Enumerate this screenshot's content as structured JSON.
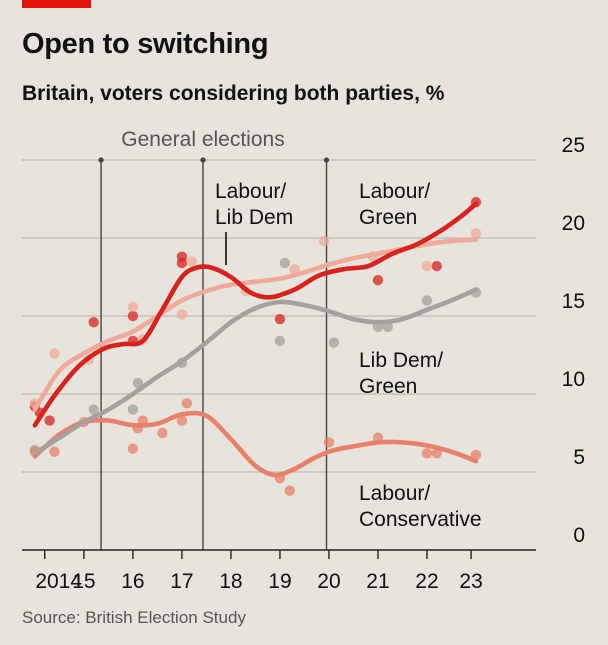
{
  "header": {
    "title": "Open to switching",
    "subtitle": "Britain, voters considering both parties, %"
  },
  "source": "Source: British Election Study",
  "colors": {
    "background": "#e6e4dc",
    "brand": "#e3120b",
    "grid": "#bdbbb3",
    "labour_lib_dem": "#d9221c",
    "labour_green": "#f0a99a",
    "lib_dem_green": "#a4a29e",
    "labour_conservative": "#e8806a"
  },
  "chart_data": {
    "type": "line",
    "title": "Open to switching",
    "subtitle": "Britain, voters considering both parties, %",
    "xlabel": "",
    "ylabel": "",
    "ylim": [
      0,
      25
    ],
    "yticks": [
      0,
      5,
      10,
      15,
      20,
      25
    ],
    "xlim": [
      2013.9,
      2024.0
    ],
    "xticks": [
      {
        "value": 2014.2,
        "label": "2014"
      },
      {
        "value": 2015,
        "label": "15"
      },
      {
        "value": 2016,
        "label": "16"
      },
      {
        "value": 2017,
        "label": "17"
      },
      {
        "value": 2018,
        "label": "18"
      },
      {
        "value": 2019,
        "label": "19"
      },
      {
        "value": 2020,
        "label": "20"
      },
      {
        "value": 2021,
        "label": "21"
      },
      {
        "value": 2022,
        "label": "22"
      },
      {
        "value": 2022.9,
        "label": "23"
      }
    ],
    "grid": true,
    "y_axis_side": "right",
    "reference_lines": {
      "label": "General elections",
      "x": [
        2015.35,
        2017.43,
        2019.95
      ]
    },
    "series": [
      {
        "name": "Labour/Lib Dem",
        "label_lines": [
          "Labour/",
          "Lib Dem"
        ],
        "color_key": "labour_lib_dem",
        "points": [
          [
            2014.0,
            9.2
          ],
          [
            2014.1,
            8.8
          ],
          [
            2014.3,
            8.3
          ],
          [
            2015.2,
            14.6
          ],
          [
            2016.0,
            13.4
          ],
          [
            2016.0,
            15.0
          ],
          [
            2017.0,
            18.4
          ],
          [
            2017.0,
            18.8
          ],
          [
            2019.0,
            14.8
          ],
          [
            2021.0,
            17.3
          ],
          [
            2022.2,
            18.2
          ],
          [
            2023.0,
            22.3
          ]
        ],
        "trend": [
          [
            2014.0,
            8.0
          ],
          [
            2014.4,
            9.9
          ],
          [
            2014.9,
            11.8
          ],
          [
            2015.4,
            12.9
          ],
          [
            2015.8,
            13.2
          ],
          [
            2016.2,
            13.4
          ],
          [
            2016.6,
            15.4
          ],
          [
            2017.0,
            17.5
          ],
          [
            2017.3,
            18.1
          ],
          [
            2017.6,
            18.1
          ],
          [
            2018.0,
            17.5
          ],
          [
            2018.4,
            16.5
          ],
          [
            2018.8,
            16.2
          ],
          [
            2019.3,
            16.7
          ],
          [
            2019.8,
            17.6
          ],
          [
            2020.3,
            18.0
          ],
          [
            2020.8,
            18.2
          ],
          [
            2021.3,
            19.0
          ],
          [
            2021.8,
            19.6
          ],
          [
            2022.3,
            20.5
          ],
          [
            2022.7,
            21.4
          ],
          [
            2023.0,
            22.2
          ]
        ]
      },
      {
        "name": "Labour/Green",
        "label_lines": [
          "Labour/",
          "Green"
        ],
        "color_key": "labour_green",
        "points": [
          [
            2014.0,
            9.4
          ],
          [
            2014.4,
            12.6
          ],
          [
            2015.1,
            12.2
          ],
          [
            2016.0,
            15.6
          ],
          [
            2016.2,
            13.5
          ],
          [
            2017.0,
            15.1
          ],
          [
            2017.2,
            18.5
          ],
          [
            2018.3,
            16.6
          ],
          [
            2019.3,
            18.0
          ],
          [
            2019.9,
            19.8
          ],
          [
            2020.9,
            18.8
          ],
          [
            2022.0,
            18.2
          ],
          [
            2023.0,
            20.3
          ]
        ],
        "trend": [
          [
            2014.0,
            9.0
          ],
          [
            2014.5,
            11.5
          ],
          [
            2015.0,
            12.6
          ],
          [
            2015.5,
            13.4
          ],
          [
            2016.0,
            14.0
          ],
          [
            2016.5,
            15.0
          ],
          [
            2017.0,
            16.0
          ],
          [
            2017.5,
            16.6
          ],
          [
            2018.0,
            17.0
          ],
          [
            2018.5,
            17.2
          ],
          [
            2019.0,
            17.4
          ],
          [
            2019.5,
            17.8
          ],
          [
            2020.0,
            18.3
          ],
          [
            2020.5,
            18.7
          ],
          [
            2021.0,
            19.0
          ],
          [
            2021.5,
            19.3
          ],
          [
            2022.0,
            19.6
          ],
          [
            2022.5,
            19.8
          ],
          [
            2023.0,
            19.9
          ]
        ]
      },
      {
        "name": "Lib Dem/Green",
        "label_lines": [
          "Lib Dem/",
          "Green"
        ],
        "color_key": "lib_dem_green",
        "points": [
          [
            2014.0,
            6.4
          ],
          [
            2015.2,
            9.0
          ],
          [
            2016.0,
            9.0
          ],
          [
            2016.1,
            10.7
          ],
          [
            2017.0,
            12.0
          ],
          [
            2019.0,
            13.4
          ],
          [
            2019.1,
            18.4
          ],
          [
            2020.1,
            13.3
          ],
          [
            2021.0,
            14.3
          ],
          [
            2021.2,
            14.3
          ],
          [
            2022.0,
            16.0
          ],
          [
            2023.0,
            16.5
          ]
        ],
        "trend": [
          [
            2014.0,
            6.2
          ],
          [
            2014.5,
            7.2
          ],
          [
            2015.0,
            8.2
          ],
          [
            2015.5,
            9.0
          ],
          [
            2016.0,
            10.0
          ],
          [
            2016.5,
            11.1
          ],
          [
            2017.0,
            12.1
          ],
          [
            2017.5,
            13.3
          ],
          [
            2018.0,
            14.6
          ],
          [
            2018.5,
            15.5
          ],
          [
            2019.0,
            15.9
          ],
          [
            2019.5,
            15.7
          ],
          [
            2020.0,
            15.3
          ],
          [
            2020.5,
            14.8
          ],
          [
            2021.0,
            14.6
          ],
          [
            2021.5,
            14.8
          ],
          [
            2022.0,
            15.4
          ],
          [
            2022.5,
            16.0
          ],
          [
            2023.0,
            16.7
          ]
        ]
      },
      {
        "name": "Labour/Conservative",
        "label_lines": [
          "Labour/",
          "Conservative"
        ],
        "color_key": "labour_conservative",
        "points": [
          [
            2014.0,
            6.3
          ],
          [
            2014.4,
            6.3
          ],
          [
            2015.0,
            8.2
          ],
          [
            2016.0,
            6.5
          ],
          [
            2016.1,
            7.8
          ],
          [
            2016.2,
            8.3
          ],
          [
            2016.6,
            7.5
          ],
          [
            2017.0,
            8.3
          ],
          [
            2017.1,
            9.4
          ],
          [
            2019.0,
            4.6
          ],
          [
            2019.2,
            3.8
          ],
          [
            2020.0,
            6.9
          ],
          [
            2021.0,
            7.2
          ],
          [
            2022.0,
            6.2
          ],
          [
            2022.2,
            6.2
          ],
          [
            2023.0,
            6.1
          ]
        ],
        "trend": [
          [
            2014.0,
            6.0
          ],
          [
            2014.5,
            7.4
          ],
          [
            2015.0,
            8.2
          ],
          [
            2015.5,
            8.3
          ],
          [
            2016.0,
            8.0
          ],
          [
            2016.5,
            8.1
          ],
          [
            2017.0,
            8.7
          ],
          [
            2017.5,
            8.6
          ],
          [
            2018.0,
            7.1
          ],
          [
            2018.5,
            5.4
          ],
          [
            2018.9,
            4.8
          ],
          [
            2019.3,
            5.2
          ],
          [
            2019.7,
            5.9
          ],
          [
            2020.1,
            6.4
          ],
          [
            2020.6,
            6.7
          ],
          [
            2021.0,
            6.9
          ],
          [
            2021.5,
            6.9
          ],
          [
            2022.0,
            6.7
          ],
          [
            2022.5,
            6.3
          ],
          [
            2023.0,
            5.7
          ]
        ]
      }
    ]
  }
}
